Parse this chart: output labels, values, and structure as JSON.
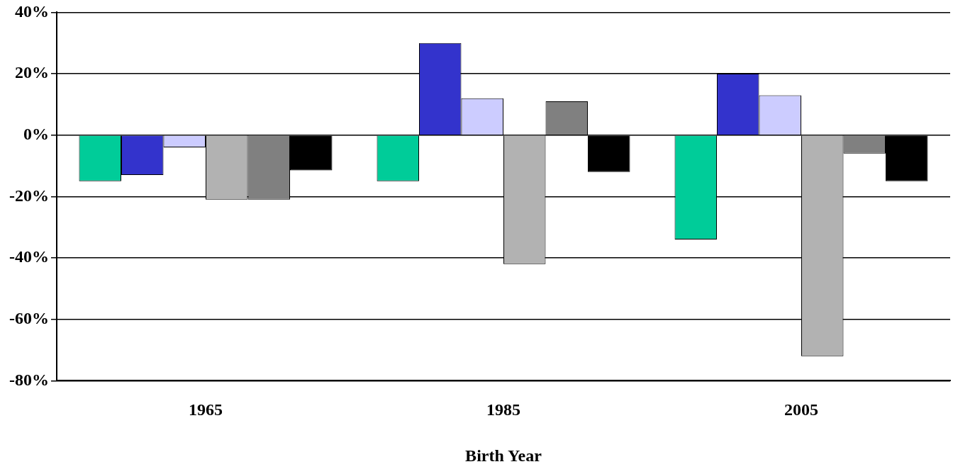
{
  "chart_data": {
    "type": "bar",
    "xlabel": "Birth Year",
    "categories": [
      "1965",
      "1985",
      "2005"
    ],
    "series": [
      {
        "color": "#00cc99",
        "values": [
          -15,
          -15,
          -34
        ]
      },
      {
        "color": "#3333cc",
        "values": [
          -13,
          30,
          20
        ]
      },
      {
        "color": "#ccccff",
        "values": [
          -4,
          12,
          13
        ]
      },
      {
        "color": "#b2b2b2",
        "values": [
          -21,
          -42,
          -72
        ]
      },
      {
        "color": "#808080",
        "values": [
          -21,
          11,
          -6
        ]
      },
      {
        "color": "#000000",
        "values": [
          -11.5,
          -12,
          -15
        ]
      }
    ],
    "ylim": [
      -80,
      40
    ],
    "yticks": [
      {
        "value": -80,
        "label": "-80%"
      },
      {
        "value": -60,
        "label": "-60%"
      },
      {
        "value": -40,
        "label": "-40%"
      },
      {
        "value": -20,
        "label": "-20%"
      },
      {
        "value": 0,
        "label": "0%"
      },
      {
        "value": 20,
        "label": "20%"
      },
      {
        "value": 40,
        "label": "40%"
      }
    ],
    "grid": "y",
    "legend": false
  }
}
